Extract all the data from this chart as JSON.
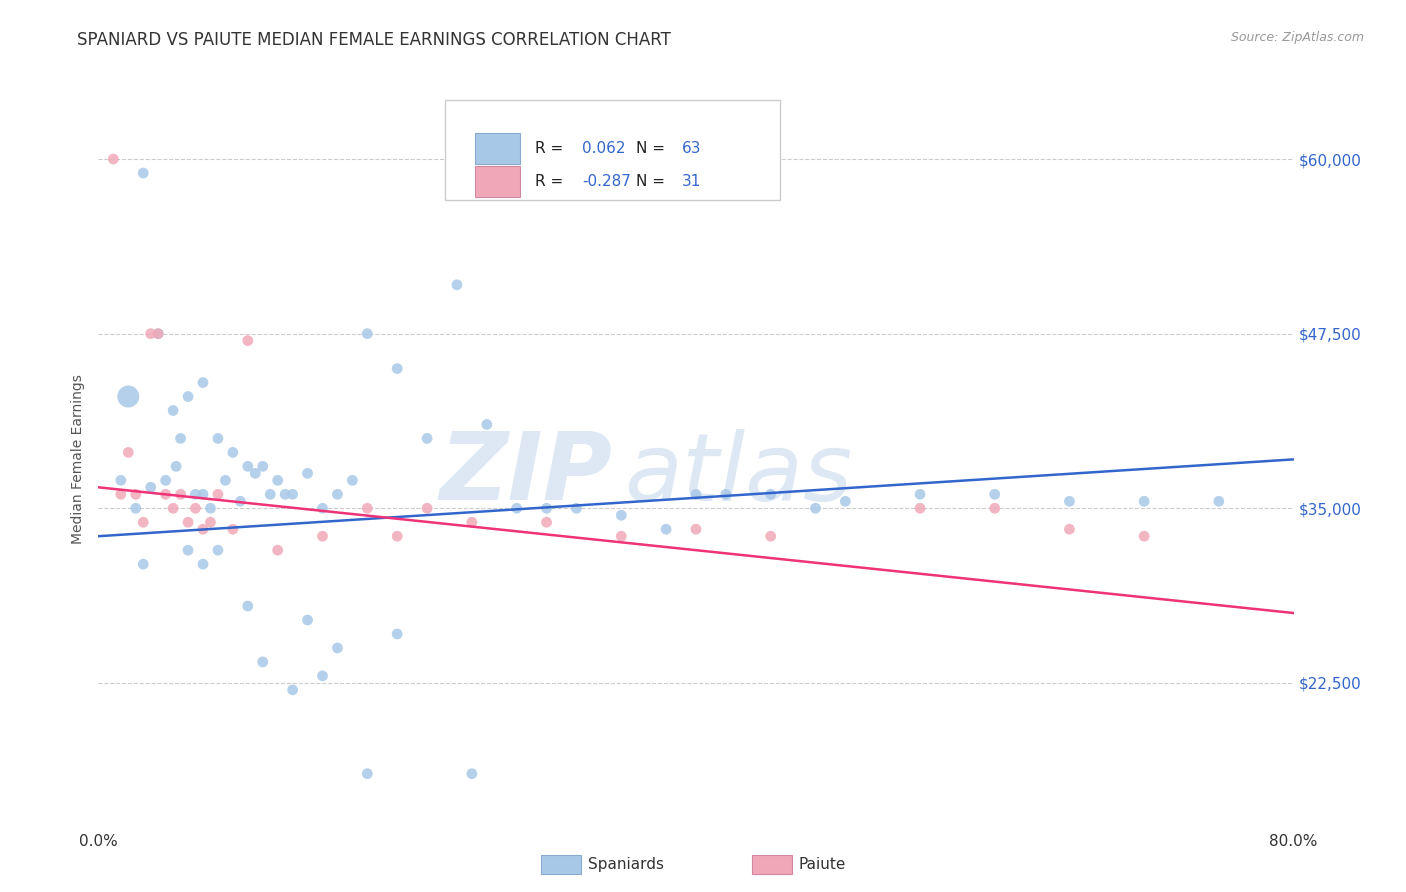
{
  "title": "SPANIARD VS PAIUTE MEDIAN FEMALE EARNINGS CORRELATION CHART",
  "source": "Source: ZipAtlas.com",
  "ylabel": "Median Female Earnings",
  "ytick_labels": [
    "$22,500",
    "$35,000",
    "$47,500",
    "$60,000"
  ],
  "ytick_values": [
    22500,
    35000,
    47500,
    60000
  ],
  "legend_r_blue": "0.062",
  "legend_n_blue": "63",
  "legend_r_pink": "-0.287",
  "legend_n_pink": "31",
  "blue_color": "#a8c8e8",
  "pink_color": "#f0a8b8",
  "line_blue": "#3366cc",
  "line_pink": "#ee3377",
  "spaniards_x": [
    1.5,
    7.0,
    2.0,
    3.0,
    4.0,
    5.0,
    5.5,
    6.0,
    7.0,
    8.0,
    9.0,
    10.0,
    10.5,
    11.0,
    12.0,
    13.0,
    14.0,
    15.0,
    16.0,
    17.0,
    18.0,
    20.0,
    22.0,
    24.0,
    26.0,
    28.0,
    30.0,
    32.0,
    35.0,
    38.0,
    40.0,
    42.0,
    45.0,
    48.0,
    50.0,
    55.0,
    60.0,
    65.0,
    70.0,
    75.0,
    2.5,
    3.5,
    4.5,
    5.2,
    6.5,
    7.5,
    8.5,
    9.5,
    11.5,
    12.5,
    3.0,
    6.0,
    7.0,
    8.0,
    10.0,
    11.0,
    13.0,
    14.0,
    15.0,
    16.0,
    18.0,
    20.0,
    25.0
  ],
  "spaniards_y": [
    37000,
    36000,
    43000,
    59000,
    47500,
    42000,
    40000,
    43000,
    44000,
    40000,
    39000,
    38000,
    37500,
    38000,
    37000,
    36000,
    37500,
    35000,
    36000,
    37000,
    47500,
    45000,
    40000,
    51000,
    41000,
    35000,
    35000,
    35000,
    34500,
    33500,
    36000,
    36000,
    36000,
    35000,
    35500,
    36000,
    36000,
    35500,
    35500,
    35500,
    35000,
    36500,
    37000,
    38000,
    36000,
    35000,
    37000,
    35500,
    36000,
    36000,
    31000,
    32000,
    31000,
    32000,
    28000,
    24000,
    22000,
    27000,
    23000,
    25000,
    16000,
    26000,
    16000
  ],
  "spaniards_size": [
    60,
    60,
    60,
    60,
    60,
    60,
    60,
    60,
    60,
    60,
    60,
    60,
    60,
    60,
    60,
    60,
    60,
    60,
    60,
    60,
    60,
    60,
    60,
    60,
    60,
    60,
    60,
    60,
    60,
    60,
    60,
    60,
    60,
    60,
    60,
    60,
    60,
    60,
    60,
    60,
    60,
    60,
    60,
    60,
    60,
    60,
    60,
    60,
    60,
    60,
    60,
    60,
    60,
    60,
    60,
    60,
    60,
    60,
    60,
    60,
    60,
    60,
    60
  ],
  "spaniards_size_special": [
    [
      2,
      250
    ]
  ],
  "paiute_x": [
    1.0,
    1.5,
    2.0,
    2.5,
    3.0,
    3.5,
    4.0,
    4.5,
    5.0,
    5.5,
    6.0,
    6.5,
    7.0,
    7.5,
    8.0,
    9.0,
    10.0,
    12.0,
    15.0,
    18.0,
    20.0,
    22.0,
    25.0,
    30.0,
    35.0,
    40.0,
    45.0,
    55.0,
    60.0,
    65.0,
    70.0
  ],
  "paiute_y": [
    60000,
    36000,
    39000,
    36000,
    34000,
    47500,
    47500,
    36000,
    35000,
    36000,
    34000,
    35000,
    33500,
    34000,
    36000,
    33500,
    47000,
    32000,
    33000,
    35000,
    33000,
    35000,
    34000,
    34000,
    33000,
    33500,
    33000,
    35000,
    35000,
    33500,
    33000
  ],
  "paiute_size": [
    60,
    60,
    60,
    60,
    60,
    60,
    60,
    60,
    60,
    60,
    60,
    60,
    60,
    60,
    60,
    60,
    60,
    60,
    60,
    60,
    60,
    60,
    60,
    60,
    60,
    60,
    60,
    60,
    60,
    60,
    60
  ],
  "xlim": [
    0,
    80
  ],
  "ylim": [
    12000,
    65000
  ],
  "blue_line_x": [
    0,
    80
  ],
  "blue_line_y": [
    33000,
    38500
  ],
  "pink_line_x": [
    0,
    80
  ],
  "pink_line_y": [
    36500,
    27500
  ],
  "background_color": "#ffffff",
  "grid_color": "#cccccc",
  "title_fontsize": 12,
  "right_tick_color": "#3366cc"
}
